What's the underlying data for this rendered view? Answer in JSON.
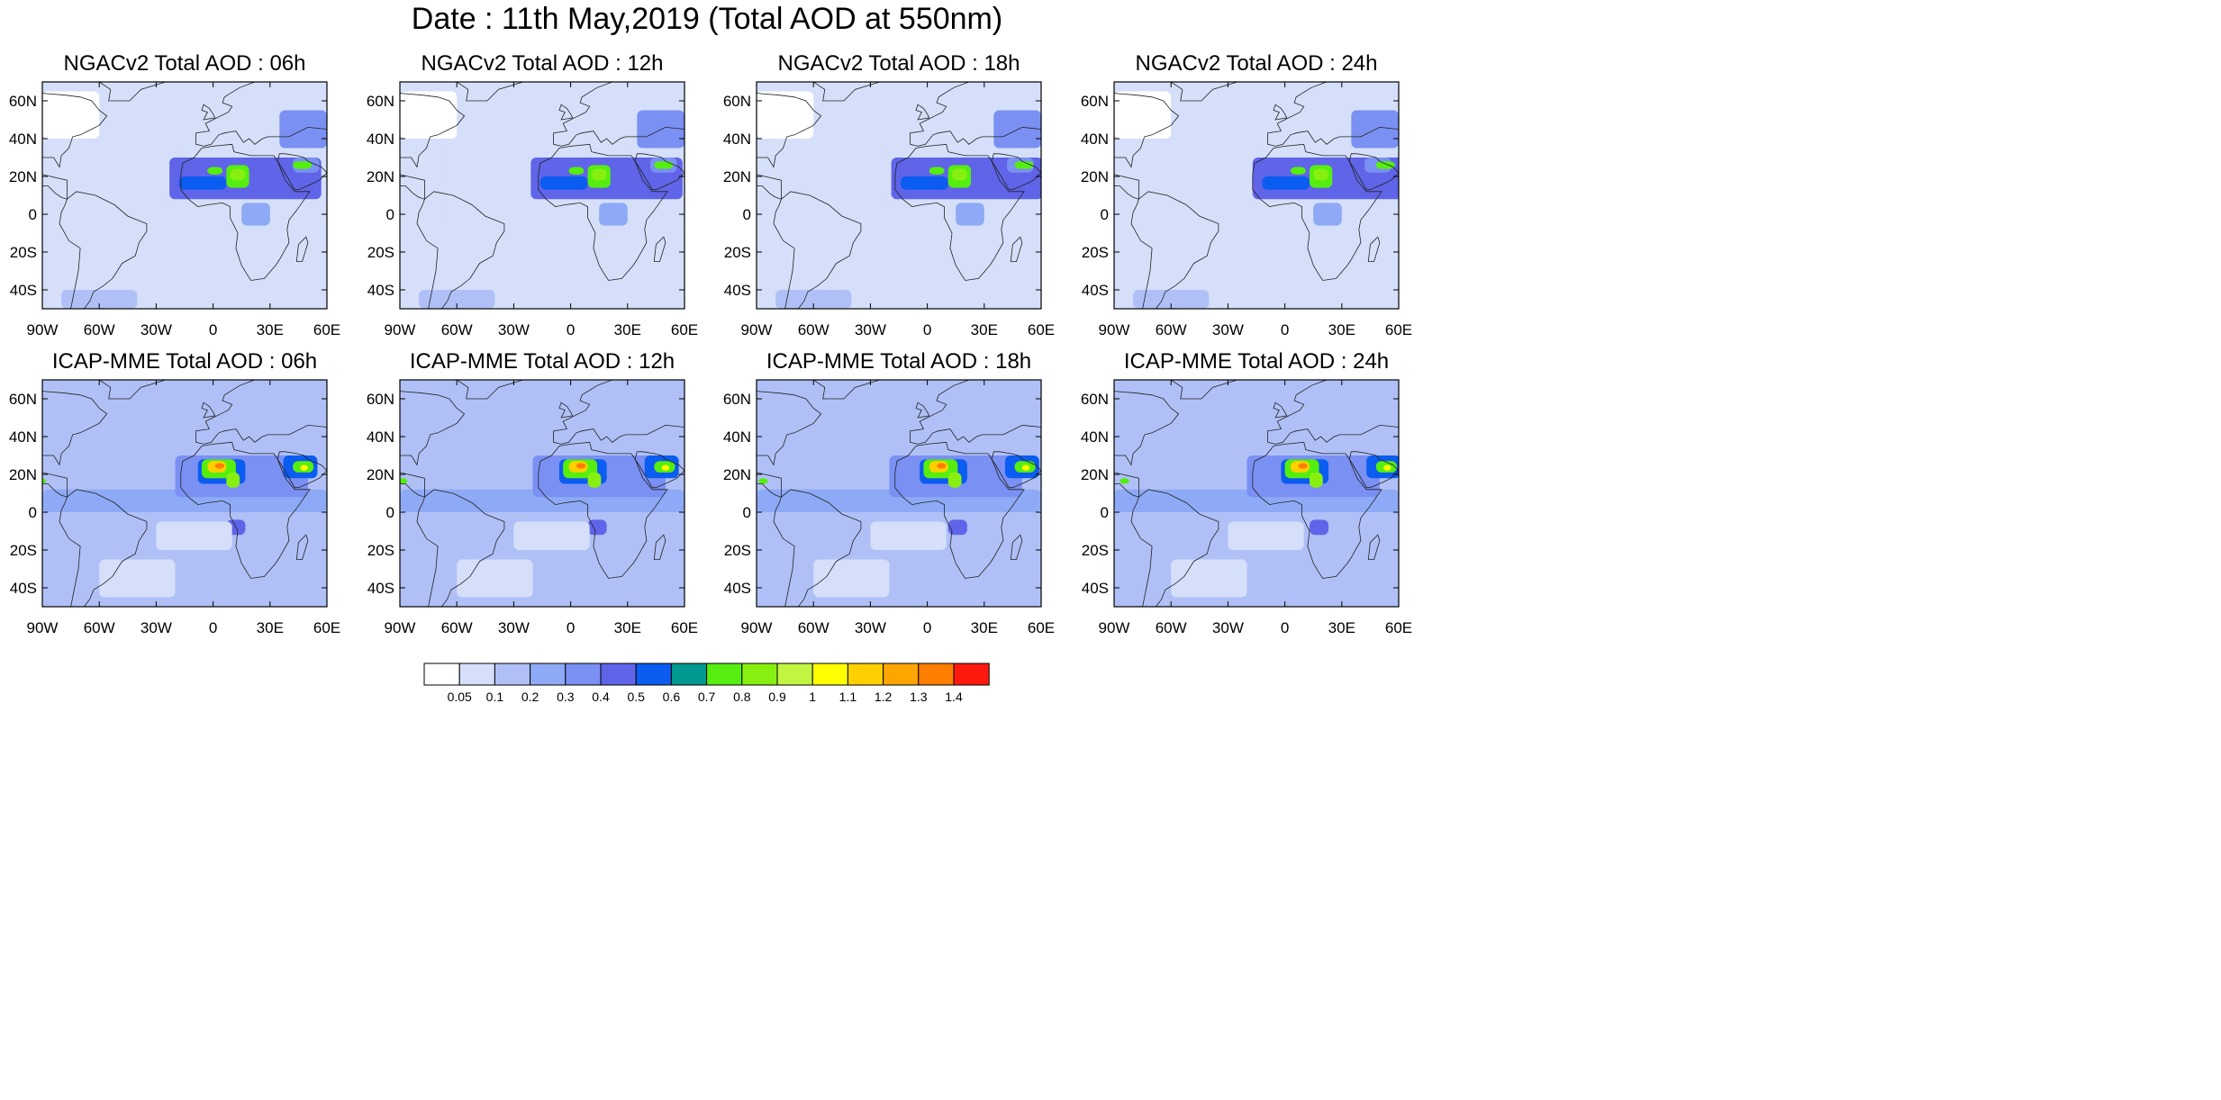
{
  "title": "Date : 11th May,2019 (Total AOD at 550nm)",
  "rows": [
    {
      "model": "NGACv2",
      "panels": [
        {
          "title": "NGACv2 Total AOD : 06h",
          "lead": "06h"
        },
        {
          "title": "NGACv2 Total AOD : 12h",
          "lead": "12h"
        },
        {
          "title": "NGACv2 Total AOD : 18h",
          "lead": "18h"
        },
        {
          "title": "NGACv2 Total AOD : 24h",
          "lead": "24h"
        }
      ]
    },
    {
      "model": "ICAP-MME",
      "panels": [
        {
          "title": "ICAP-MME Total AOD : 06h",
          "lead": "06h"
        },
        {
          "title": "ICAP-MME Total AOD : 12h",
          "lead": "12h"
        },
        {
          "title": "ICAP-MME Total AOD : 18h",
          "lead": "18h"
        },
        {
          "title": "ICAP-MME Total AOD : 24h",
          "lead": "24h"
        }
      ]
    }
  ],
  "map_extent": {
    "lon": [
      -90,
      60
    ],
    "lat": [
      -50,
      70
    ]
  },
  "lon_ticks": [
    {
      "value": -90,
      "label": "90W"
    },
    {
      "value": -60,
      "label": "60W"
    },
    {
      "value": -30,
      "label": "30W"
    },
    {
      "value": 0,
      "label": "0"
    },
    {
      "value": 30,
      "label": "30E"
    },
    {
      "value": 60,
      "label": "60E"
    }
  ],
  "lat_ticks": [
    {
      "value": 60,
      "label": "60N"
    },
    {
      "value": 40,
      "label": "40N"
    },
    {
      "value": 20,
      "label": "20N"
    },
    {
      "value": 0,
      "label": "0"
    },
    {
      "value": -20,
      "label": "20S"
    },
    {
      "value": -40,
      "label": "40S"
    }
  ],
  "colorbar": {
    "colors": [
      "#ffffff",
      "#d5dff9",
      "#b0c0f7",
      "#8eaaf6",
      "#7a90f3",
      "#5f64e8",
      "#0b5cf0",
      "#00998f",
      "#55ee10",
      "#88f010",
      "#c2f542",
      "#ffff00",
      "#ffd000",
      "#ffa500",
      "#ff7e00",
      "#ff1a10"
    ],
    "labels": [
      "0.05",
      "0.1",
      "0.2",
      "0.3",
      "0.4",
      "0.5",
      "0.6",
      "0.7",
      "0.8",
      "0.9",
      "1",
      "1.1",
      "1.2",
      "1.3",
      "1.4"
    ]
  }
}
